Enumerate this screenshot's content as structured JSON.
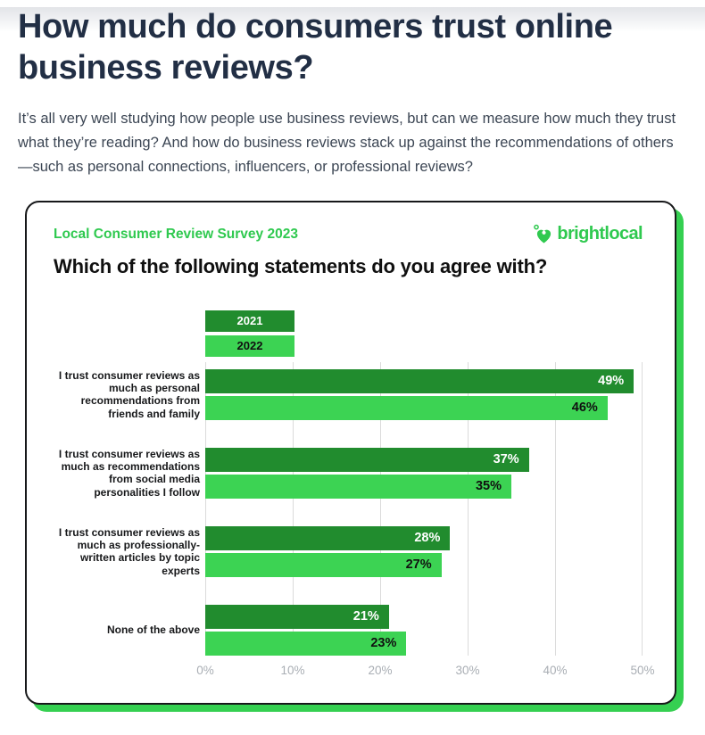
{
  "page": {
    "heading_line1": "How much do consumers trust online",
    "heading_line2": "business reviews?",
    "intro": "It’s all very well studying how people use business reviews, but can we measure how much they trust what they’re reading? And how do business reviews stack up against the recommendations of others—such as personal connections, influencers, or professional reviews?"
  },
  "card": {
    "survey_label": "Local Consumer Review Survey 2023",
    "brand_name": "brightlocal",
    "brand_logo_icon": "heart-pin-icon"
  },
  "chart_data": {
    "type": "bar",
    "orientation": "horizontal",
    "title": "Which of the following statements do you agree with?",
    "xlabel": "",
    "ylabel": "",
    "xmax": 50,
    "axis_range": [
      0,
      50
    ],
    "grid": true,
    "legend_position": "top-left-of-plot",
    "xticks": [
      "0%",
      "10%",
      "20%",
      "30%",
      "40%",
      "50%"
    ],
    "legend": [
      {
        "name": "2021",
        "color": "#218C2E"
      },
      {
        "name": "2022",
        "color": "#3CD353"
      }
    ],
    "categories": [
      "I trust consumer reviews as much as personal recommendations from friends and family",
      "I trust consumer reviews as much as recommendations from social media personalities I follow",
      "I trust consumer reviews as much as professionally-written articles by topic experts",
      "None of the above"
    ],
    "series": [
      {
        "name": "2021",
        "values": [
          49,
          37,
          28,
          21
        ]
      },
      {
        "name": "2022",
        "values": [
          46,
          35,
          27,
          23
        ]
      }
    ],
    "groups": [
      {
        "label": "I trust consumer reviews as much as personal recommendations from friends and family",
        "y2021": 49,
        "y2021_label": "49%",
        "y2022": 46,
        "y2022_label": "46%"
      },
      {
        "label": "I trust consumer reviews as much as recommendations from social media personalities I follow",
        "y2021": 37,
        "y2021_label": "37%",
        "y2022": 35,
        "y2022_label": "35%"
      },
      {
        "label": "I trust consumer reviews as much as professionally-written articles by topic experts",
        "y2021": 28,
        "y2021_label": "28%",
        "y2022": 27,
        "y2022_label": "27%"
      },
      {
        "label": "None of the above",
        "y2021": 21,
        "y2021_label": "21%",
        "y2022": 23,
        "y2022_label": "23%"
      }
    ]
  },
  "colors": {
    "heading": "#222F45",
    "body_text": "#3C4654",
    "green_dark": "#218C2E",
    "green_light": "#3CD353",
    "brand_green": "#2FC94F",
    "card_border": "#17181A",
    "card_shadow": "#35D051",
    "grid_line": "#DBDBDB",
    "axis_text": "#A9AEB4"
  }
}
